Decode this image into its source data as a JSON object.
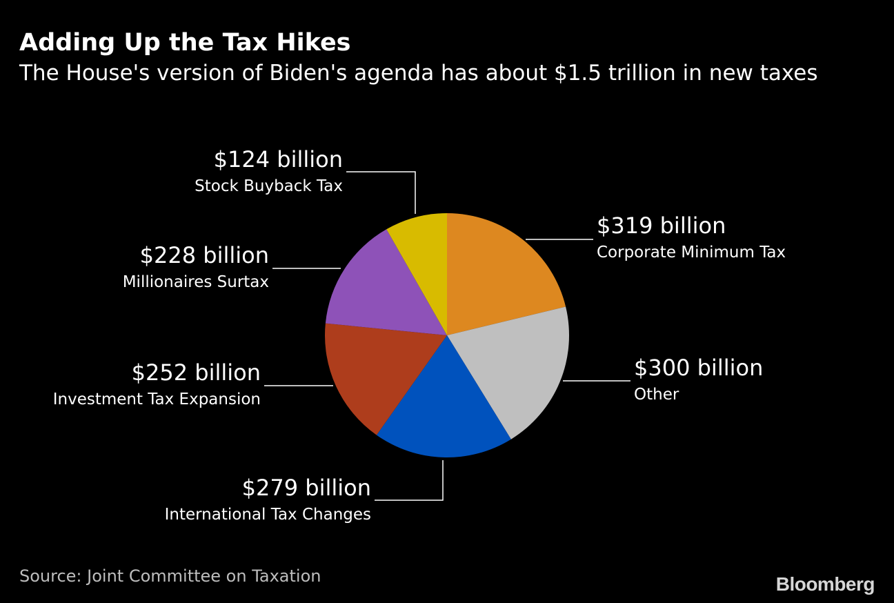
{
  "header": {
    "title": "Adding Up the Tax Hikes",
    "subtitle": "The House's version of Biden's agenda has about $1.5 trillion in new taxes"
  },
  "footer": {
    "source": "Source: Joint Committee on Taxation",
    "brand": "Bloomberg"
  },
  "chart_data": {
    "type": "pie",
    "title": "Adding Up the Tax Hikes",
    "subtitle": "The House's version of Biden's agenda has about $1.5 trillion in new taxes",
    "unit": "billion",
    "start": "12 o'clock",
    "direction": "clockwise",
    "slices": [
      {
        "name": "Corporate Minimum Tax",
        "value": 319,
        "value_label": "$319 billion",
        "color": "#dd8820"
      },
      {
        "name": "Other",
        "value": 300,
        "value_label": "$300 billion",
        "color": "#bfbfbf"
      },
      {
        "name": "International Tax Changes",
        "value": 279,
        "value_label": "$279 billion",
        "color": "#0052bd"
      },
      {
        "name": "Investment Tax Expansion",
        "value": 252,
        "value_label": "$252 billion",
        "color": "#ae3d1c"
      },
      {
        "name": "Millionaires Surtax",
        "value": 228,
        "value_label": "$228 billion",
        "color": "#8e52b8"
      },
      {
        "name": "Stock Buyback Tax",
        "value": 124,
        "value_label": "$124 billion",
        "color": "#d8bb00"
      }
    ],
    "source": "Source: Joint Committee on Taxation"
  }
}
